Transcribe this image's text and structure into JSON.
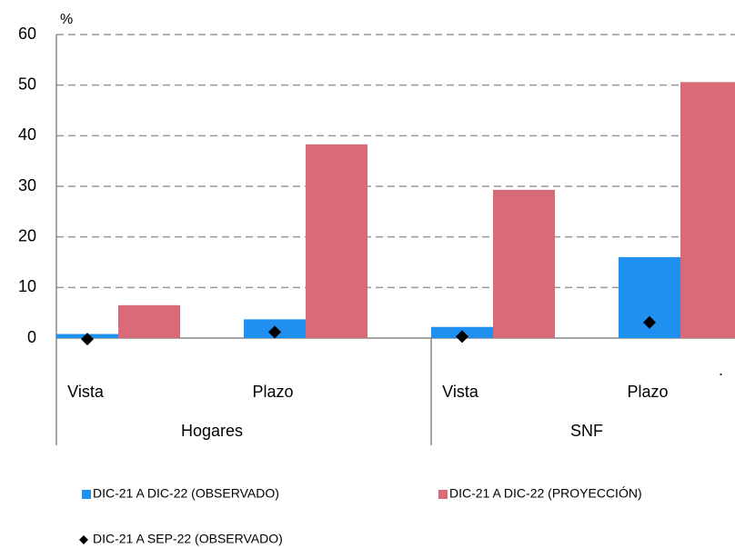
{
  "chart_data": {
    "type": "bar",
    "y_label": "%",
    "categories": [
      "Vista",
      "Plazo",
      "Vista",
      "Plazo"
    ],
    "groups": [
      "Hogares",
      "SNF"
    ],
    "series": [
      {
        "name": "DIC-21 A DIC-22 (OBSERVADO)",
        "color": "#1f8ff0",
        "values": [
          0.8,
          3.7,
          2.2,
          16
        ]
      },
      {
        "name": "DIC-21 A DIC-22 (PROYECCIÓN)",
        "color": "#d96b78",
        "values": [
          6.5,
          38.3,
          29.3,
          50.6
        ]
      },
      {
        "name": "DIC-21 A SEP-22 (OBSERVADO)",
        "color": "#000000",
        "marker": "diamond",
        "values": [
          -0.2,
          1.2,
          0.3,
          3.1
        ]
      }
    ],
    "annotation": ".",
    "ylim": [
      0,
      60
    ],
    "yticks": [
      0,
      10,
      20,
      30,
      40,
      50,
      60
    ],
    "grid": true
  }
}
